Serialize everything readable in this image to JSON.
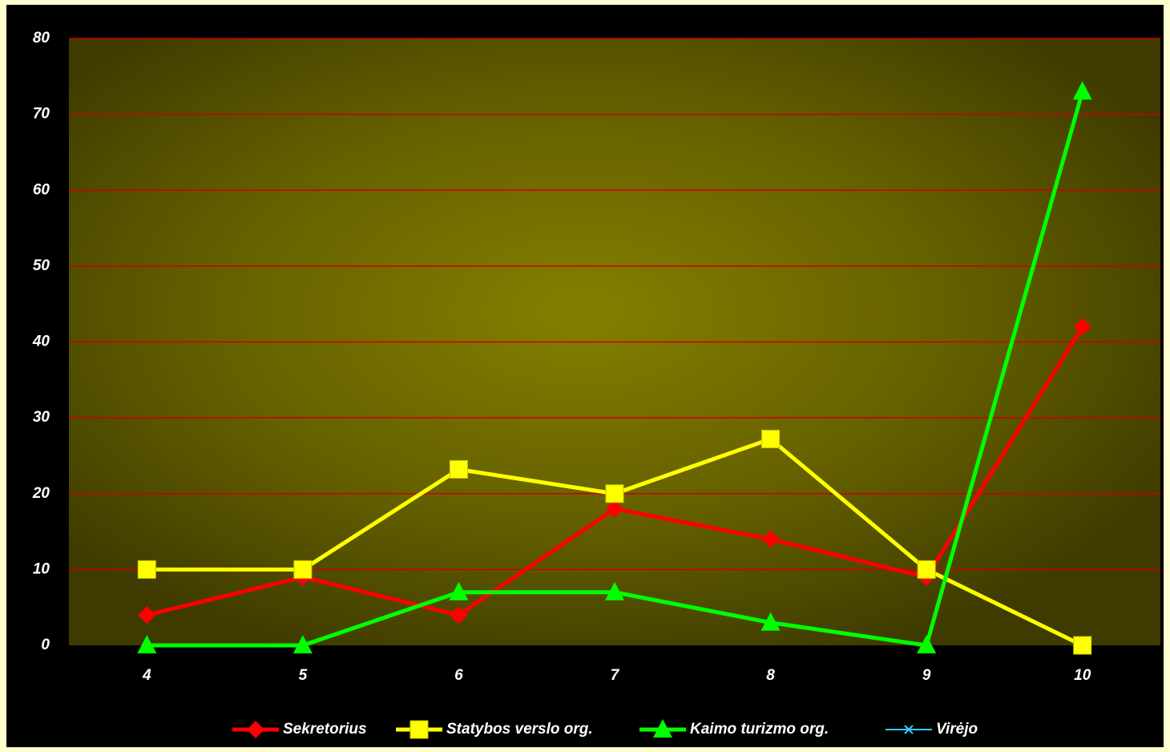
{
  "chart_data": {
    "type": "line",
    "categories": [
      "4",
      "5",
      "6",
      "7",
      "8",
      "9",
      "10"
    ],
    "series": [
      {
        "name": "Sekretorius",
        "color": "#ff0000",
        "marker": "diamond",
        "values": [
          4,
          9,
          4,
          18,
          14,
          9,
          42
        ]
      },
      {
        "name": "Statybos verslo org.",
        "color": "#ffff00",
        "marker": "square",
        "values": [
          10,
          10,
          23.2,
          20,
          27.2,
          10,
          0
        ]
      },
      {
        "name": "Kaimo turizmo org.",
        "color": "#00ff00",
        "marker": "triangle",
        "values": [
          0,
          0,
          7,
          7,
          3,
          0,
          73
        ]
      },
      {
        "name": "Virėjo",
        "color": "#33ccff",
        "marker": "x",
        "values": [
          null,
          null,
          null,
          null,
          null,
          null,
          null
        ]
      }
    ],
    "ylim": [
      0,
      80
    ],
    "yticks": [
      0,
      10,
      20,
      30,
      40,
      50,
      60,
      70,
      80
    ],
    "grid": true,
    "grid_color": "#cc0000",
    "legend": "bottom"
  }
}
